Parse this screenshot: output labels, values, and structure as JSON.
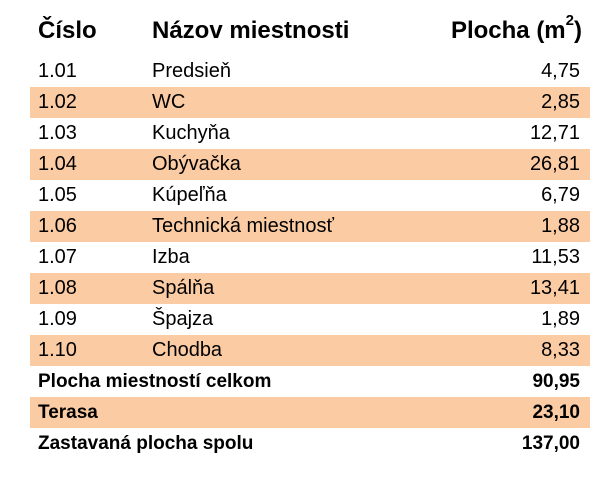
{
  "headers": {
    "number": "Číslo",
    "name": "Názov miestnosti",
    "area": "Plocha (m",
    "area_sup": "2",
    "area_close": ")"
  },
  "rooms": [
    {
      "number": "1.01",
      "name": "Predsieň",
      "area": "4,75"
    },
    {
      "number": "1.02",
      "name": "WC",
      "area": "2,85"
    },
    {
      "number": "1.03",
      "name": "Kuchyňa",
      "area": "12,71"
    },
    {
      "number": "1.04",
      "name": "Obývačka",
      "area": "26,81"
    },
    {
      "number": "1.05",
      "name": "Kúpeľňa",
      "area": "6,79"
    },
    {
      "number": "1.06",
      "name": "Technická miestnosť",
      "area": "1,88"
    },
    {
      "number": "1.07",
      "name": "Izba",
      "area": "11,53"
    },
    {
      "number": "1.08",
      "name": "Spálňa",
      "area": "13,41"
    },
    {
      "number": "1.09",
      "name": "Špajza",
      "area": "1,89"
    },
    {
      "number": "1.10",
      "name": "Chodba",
      "area": "8,33"
    }
  ],
  "totals": [
    {
      "label": "Plocha miestností celkom",
      "value": "90,95"
    },
    {
      "label": "Terasa",
      "value": "23,10"
    },
    {
      "label": "Zastavaná plocha spolu",
      "value": "137,00"
    }
  ],
  "colors": {
    "shade": "#fbcba4"
  }
}
